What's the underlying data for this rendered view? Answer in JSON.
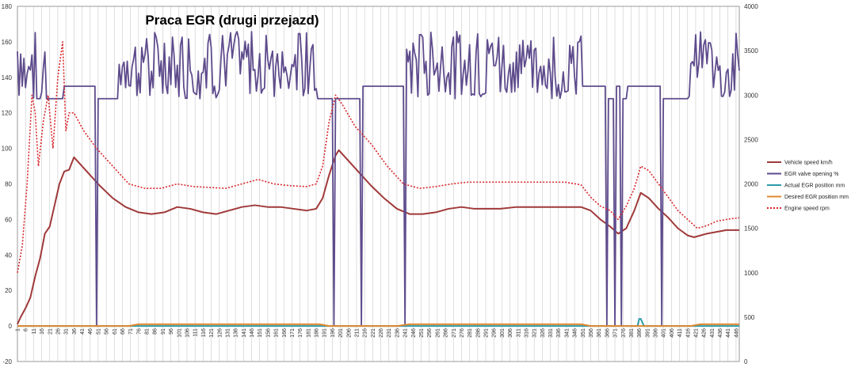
{
  "chart_data": {
    "type": "line",
    "title": "Praca EGR (drugi przejazd)",
    "left_axis": {
      "min": -20,
      "max": 180,
      "step": 20,
      "ticks": [
        "-20",
        "0",
        "20",
        "40",
        "60",
        "80",
        "100",
        "120",
        "140",
        "160",
        "180"
      ]
    },
    "right_axis": {
      "min": 0,
      "max": 4000,
      "step": 500,
      "ticks": [
        "0",
        "500",
        "1000",
        "1500",
        "2000",
        "2500",
        "3000",
        "3500",
        "4000"
      ]
    },
    "grid": "vertical gridlines at every x tick label",
    "legend_position": "right",
    "x_range": [
      1,
      448
    ],
    "x_tick_labels": [
      "1",
      "6",
      "11",
      "16",
      "21",
      "26",
      "31",
      "36",
      "41",
      "46",
      "51",
      "56",
      "61",
      "66",
      "71",
      "76",
      "81",
      "86",
      "91",
      "96",
      "101",
      "106",
      "111",
      "116",
      "121",
      "126",
      "131",
      "136",
      "141",
      "146",
      "151",
      "156",
      "161",
      "166",
      "171",
      "176",
      "181",
      "186",
      "191",
      "196",
      "201",
      "206",
      "211",
      "216",
      "221",
      "226",
      "231",
      "236",
      "241",
      "246",
      "251",
      "256",
      "261",
      "266",
      "271",
      "276",
      "281",
      "286",
      "291",
      "296",
      "301",
      "306",
      "311",
      "316",
      "321",
      "326",
      "331",
      "336",
      "341",
      "346",
      "351",
      "356",
      "361",
      "366",
      "371",
      "376",
      "381",
      "386",
      "391",
      "396",
      "401",
      "406",
      "411",
      "416",
      "421",
      "426",
      "431",
      "436",
      "441",
      "446"
    ],
    "series": [
      {
        "name": "Vehicle speed km/h",
        "axis": "left",
        "color": "#A0393A",
        "style": "solid",
        "x": [
          1,
          3,
          6,
          9,
          12,
          15,
          18,
          21,
          24,
          27,
          30,
          33,
          36,
          40,
          46,
          52,
          60,
          68,
          76,
          84,
          92,
          100,
          108,
          116,
          124,
          132,
          140,
          148,
          156,
          164,
          172,
          180,
          186,
          190,
          194,
          198,
          200,
          205,
          212,
          220,
          228,
          236,
          244,
          252,
          260,
          268,
          276,
          284,
          292,
          300,
          310,
          320,
          330,
          340,
          350,
          356,
          362,
          368,
          373,
          378,
          383,
          387,
          392,
          398,
          404,
          410,
          416,
          420,
          424,
          428,
          434,
          440,
          448
        ],
        "y": [
          1,
          5,
          10,
          16,
          28,
          38,
          52,
          56,
          68,
          80,
          87,
          88,
          95,
          91,
          85,
          79,
          72,
          67,
          64,
          63,
          64,
          67,
          66,
          64,
          63,
          65,
          67,
          68,
          67,
          67,
          66,
          65,
          66,
          72,
          85,
          96,
          99,
          94,
          87,
          79,
          72,
          66,
          63,
          63,
          64,
          66,
          67,
          66,
          66,
          66,
          67,
          67,
          67,
          67,
          67,
          65,
          60,
          56,
          52,
          55,
          65,
          75,
          72,
          66,
          61,
          55,
          51,
          50,
          51,
          52,
          53,
          54,
          54
        ]
      },
      {
        "name": "EGR valve opening %",
        "axis": "left",
        "color": "#5E4B8C",
        "style": "solid"
      },
      {
        "name": "Actual EGR position mm",
        "axis": "left",
        "color": "#2C9BA8",
        "style": "solid",
        "x": [
          1,
          383,
          385,
          386,
          387,
          389,
          448
        ],
        "y": [
          0,
          0,
          0,
          4,
          4,
          0,
          0
        ]
      },
      {
        "name": "Desired EGR position mm",
        "axis": "left",
        "color": "#E0882F",
        "style": "solid",
        "x": [
          1,
          10,
          18,
          70,
          76,
          98,
          104,
          188,
          194,
          236,
          244,
          350,
          356,
          418,
          424,
          448
        ],
        "y": [
          0,
          0,
          0,
          0,
          1,
          1,
          1,
          1,
          0,
          0,
          1,
          1,
          0,
          0,
          1,
          1
        ]
      },
      {
        "name": "Engine speed rpm",
        "axis": "right",
        "color": "#D9262B",
        "style": "dotted",
        "x": [
          1,
          4,
          7,
          10,
          12,
          14,
          17,
          20,
          23,
          26,
          29,
          31,
          33,
          36,
          42,
          50,
          60,
          70,
          80,
          90,
          100,
          110,
          120,
          130,
          140,
          150,
          160,
          170,
          180,
          186,
          190,
          194,
          198,
          202,
          210,
          220,
          230,
          240,
          250,
          260,
          270,
          280,
          290,
          300,
          310,
          320,
          330,
          340,
          350,
          356,
          362,
          368,
          373,
          378,
          383,
          387,
          392,
          398,
          404,
          410,
          416,
          422,
          428,
          434,
          440,
          448
        ],
        "y": [
          1000,
          1300,
          2000,
          3000,
          2800,
          2200,
          2700,
          3000,
          2400,
          3200,
          3600,
          2600,
          2800,
          2800,
          2600,
          2400,
          2200,
          2000,
          1950,
          1950,
          2000,
          1970,
          1960,
          1950,
          2000,
          2050,
          2000,
          1980,
          1970,
          2000,
          2200,
          2700,
          3000,
          2900,
          2650,
          2450,
          2200,
          2000,
          1950,
          1970,
          2000,
          2020,
          2020,
          2020,
          2020,
          2020,
          2020,
          2020,
          1990,
          1850,
          1750,
          1700,
          1600,
          1750,
          1950,
          2200,
          2150,
          2000,
          1850,
          1700,
          1600,
          1500,
          1530,
          1580,
          1600,
          1620
        ]
      }
    ]
  }
}
